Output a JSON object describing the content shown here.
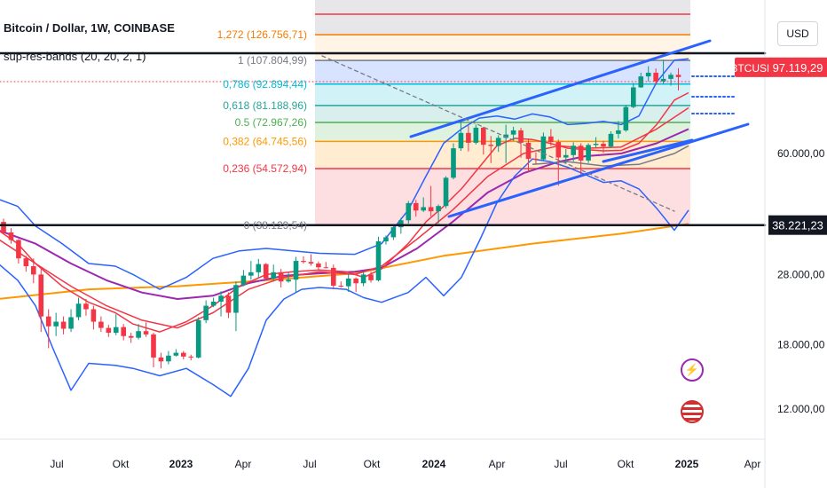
{
  "header": {
    "title": "Bitcoin / Dollar, 1W, COINBASE",
    "indicator": "sup-res-bands (20, 20, 2, 1)",
    "currency": "USD"
  },
  "chart_data": {
    "type": "candlestick",
    "symbol": "BTCUSD",
    "interval": "1W",
    "x_ticks": [
      "Jul",
      "Okt",
      "2023",
      "Apr",
      "Jul",
      "Okt",
      "2024",
      "Apr",
      "Jul",
      "Okt",
      "2025",
      "Apr"
    ],
    "y_ticks": [
      "60.000,00",
      "28.000,00",
      "18.000,00",
      "12.000,00"
    ],
    "y_scale": "log",
    "last_price_label": "BTCUSD",
    "last_price": "97.119,29",
    "support_price": "38.221,23",
    "fibonacci": [
      {
        "level": "1,272",
        "price": "126.756,71",
        "color": "#f57c00"
      },
      {
        "level": "1",
        "price": "107.804,99",
        "color": "#787b86"
      },
      {
        "level": "0,786",
        "price": "92.894,44",
        "color": "#00bcd4"
      },
      {
        "level": "0,618",
        "price": "81.188,96",
        "color": "#26a69a"
      },
      {
        "level": "0.5",
        "price": "72.967,26",
        "color": "#4caf50"
      },
      {
        "level": "0,382",
        "price": "64.745,56",
        "color": "#ff9800"
      },
      {
        "level": "0,236",
        "price": "54.572,94",
        "color": "#f23645"
      },
      {
        "level": "0",
        "price": "38.129,54",
        "color": "#787b86"
      }
    ],
    "candles_ohlc": [
      [
        39000,
        39800,
        36000,
        36500
      ],
      [
        36500,
        37500,
        34000,
        34800
      ],
      [
        34800,
        35000,
        30000,
        31000
      ],
      [
        31000,
        31500,
        28500,
        29500
      ],
      [
        29500,
        31000,
        26500,
        28000
      ],
      [
        28000,
        29000,
        19500,
        21500
      ],
      [
        21500,
        22500,
        17600,
        20200
      ],
      [
        20200,
        22000,
        19000,
        20800
      ],
      [
        20800,
        21500,
        19200,
        19900
      ],
      [
        19900,
        22500,
        19500,
        21400
      ],
      [
        21400,
        24200,
        21000,
        23300
      ],
      [
        23300,
        24000,
        21600,
        22500
      ],
      [
        22500,
        23000,
        19800,
        20800
      ],
      [
        20800,
        21500,
        19500,
        20000
      ],
      [
        20000,
        20400,
        18900,
        19400
      ],
      [
        19400,
        21800,
        19100,
        20100
      ],
      [
        20100,
        20500,
        18500,
        19000
      ],
      [
        19000,
        19400,
        18200,
        18800
      ],
      [
        18800,
        20500,
        18600,
        19600
      ],
      [
        19600,
        20700,
        18900,
        19200
      ],
      [
        19200,
        19400,
        15600,
        16600
      ],
      [
        16600,
        17100,
        15500,
        16200
      ],
      [
        16200,
        17300,
        15900,
        16800
      ],
      [
        16800,
        17500,
        16700,
        17100
      ],
      [
        17100,
        17300,
        16400,
        16700
      ],
      [
        16700,
        16900,
        16300,
        16600
      ],
      [
        16600,
        21400,
        16500,
        21000
      ],
      [
        21000,
        23800,
        20600,
        23000
      ],
      [
        23000,
        24200,
        22800,
        23600
      ],
      [
        23600,
        25200,
        21500,
        24500
      ],
      [
        24500,
        25000,
        21300,
        22000
      ],
      [
        22000,
        26800,
        19600,
        26200
      ],
      [
        26200,
        28800,
        26000,
        27800
      ],
      [
        27800,
        30500,
        27100,
        28400
      ],
      [
        28400,
        30900,
        27400,
        29900
      ],
      [
        29900,
        30100,
        27000,
        27300
      ],
      [
        27300,
        29800,
        26800,
        28400
      ],
      [
        28400,
        29000,
        25800,
        26800
      ],
      [
        26800,
        28300,
        26600,
        27100
      ],
      [
        27100,
        31300,
        25000,
        30500
      ],
      [
        30500,
        31400,
        30000,
        30300
      ],
      [
        30300,
        31800,
        29600,
        30000
      ],
      [
        30000,
        30400,
        28800,
        29300
      ],
      [
        29300,
        30300,
        29100,
        29200
      ],
      [
        29200,
        29800,
        25500,
        26100
      ],
      [
        26100,
        26800,
        25800,
        26000
      ],
      [
        26000,
        28100,
        25100,
        27300
      ],
      [
        27300,
        27500,
        25100,
        26500
      ],
      [
        26500,
        28500,
        26000,
        28000
      ],
      [
        28000,
        28500,
        26600,
        27000
      ],
      [
        27000,
        35500,
        26800,
        34500
      ],
      [
        34500,
        35800,
        33800,
        35400
      ],
      [
        35400,
        38200,
        34800,
        37700
      ],
      [
        37700,
        40000,
        36200,
        39400
      ],
      [
        39400,
        44500,
        38600,
        43900
      ],
      [
        43900,
        44800,
        40300,
        41900
      ],
      [
        41900,
        45500,
        41500,
        42800
      ],
      [
        42800,
        48900,
        40400,
        41700
      ],
      [
        41700,
        43500,
        38600,
        43100
      ],
      [
        43100,
        52000,
        42500,
        51500
      ],
      [
        51500,
        64000,
        51000,
        62000
      ],
      [
        62000,
        73700,
        61000,
        68300
      ],
      [
        68300,
        71500,
        60800,
        64200
      ],
      [
        64200,
        72000,
        63500,
        70600
      ],
      [
        70600,
        71000,
        59600,
        63400
      ],
      [
        63400,
        67000,
        56500,
        62900
      ],
      [
        62900,
        67300,
        60600,
        66200
      ],
      [
        66200,
        71900,
        56500,
        67600
      ],
      [
        67600,
        71000,
        65000,
        69400
      ],
      [
        69400,
        70500,
        58400,
        64200
      ],
      [
        64200,
        66000,
        53400,
        58000
      ],
      [
        58000,
        60500,
        56000,
        57800
      ],
      [
        57800,
        68500,
        57500,
        66800
      ],
      [
        66800,
        70000,
        63000,
        64500
      ],
      [
        64500,
        65500,
        49000,
        58500
      ],
      [
        58500,
        61700,
        56200,
        59400
      ],
      [
        59400,
        64400,
        57100,
        63000
      ],
      [
        63000,
        64000,
        52500,
        57400
      ],
      [
        57400,
        64000,
        56500,
        63300
      ],
      [
        63300,
        66500,
        62100,
        63800
      ],
      [
        63800,
        65000,
        60200,
        62700
      ],
      [
        62700,
        69000,
        62200,
        67900
      ],
      [
        67900,
        73600,
        66000,
        69400
      ],
      [
        69400,
        81500,
        68800,
        80400
      ],
      [
        80400,
        93500,
        79800,
        91000
      ],
      [
        91000,
        99800,
        90700,
        97500
      ],
      [
        97500,
        104000,
        94500,
        99800
      ],
      [
        99800,
        102500,
        92400,
        94500
      ],
      [
        94500,
        108300,
        93100,
        96000
      ],
      [
        96000,
        99900,
        92000,
        98500
      ],
      [
        98500,
        102700,
        89300,
        97100
      ]
    ],
    "bollinger_upper": [
      [
        -2,
        45000
      ],
      [
        20,
        43000
      ],
      [
        40,
        38000
      ],
      [
        70,
        34000
      ],
      [
        100,
        30000
      ],
      [
        130,
        29500
      ],
      [
        150,
        28000
      ],
      [
        180,
        25500
      ],
      [
        210,
        27500
      ],
      [
        240,
        31000
      ],
      [
        270,
        32500
      ],
      [
        300,
        33000
      ],
      [
        330,
        32500
      ],
      [
        360,
        32000
      ],
      [
        400,
        31800
      ],
      [
        430,
        34000
      ],
      [
        460,
        42000
      ],
      [
        480,
        52000
      ],
      [
        500,
        64000
      ],
      [
        520,
        70000
      ],
      [
        540,
        75000
      ],
      [
        560,
        76000
      ],
      [
        580,
        74500
      ],
      [
        600,
        77000
      ],
      [
        620,
        75500
      ],
      [
        640,
        72000
      ],
      [
        660,
        72500
      ],
      [
        680,
        73500
      ],
      [
        700,
        72000
      ],
      [
        720,
        76000
      ],
      [
        740,
        94000
      ],
      [
        760,
        108000
      ],
      [
        776,
        109000
      ]
    ],
    "bollinger_mid": [
      [
        -2,
        37000
      ],
      [
        20,
        34000
      ],
      [
        40,
        30000
      ],
      [
        70,
        26000
      ],
      [
        100,
        23500
      ],
      [
        130,
        22000
      ],
      [
        150,
        20500
      ],
      [
        180,
        19500
      ],
      [
        210,
        20800
      ],
      [
        240,
        23000
      ],
      [
        270,
        26000
      ],
      [
        300,
        28000
      ],
      [
        330,
        28500
      ],
      [
        360,
        28800
      ],
      [
        390,
        28500
      ],
      [
        410,
        27500
      ],
      [
        430,
        29000
      ],
      [
        460,
        34000
      ],
      [
        480,
        39000
      ],
      [
        500,
        43000
      ],
      [
        520,
        48000
      ],
      [
        540,
        55000
      ],
      [
        560,
        63000
      ],
      [
        580,
        66000
      ],
      [
        600,
        65500
      ],
      [
        620,
        64000
      ],
      [
        640,
        62000
      ],
      [
        660,
        61500
      ],
      [
        680,
        61000
      ],
      [
        700,
        61200
      ],
      [
        720,
        64000
      ],
      [
        740,
        72000
      ],
      [
        760,
        84000
      ],
      [
        776,
        88000
      ]
    ],
    "bollinger_lower": [
      [
        -2,
        30000
      ],
      [
        20,
        27000
      ],
      [
        40,
        23000
      ],
      [
        60,
        17500
      ],
      [
        80,
        13500
      ],
      [
        100,
        16000
      ],
      [
        130,
        15800
      ],
      [
        150,
        15500
      ],
      [
        180,
        14800
      ],
      [
        210,
        15500
      ],
      [
        240,
        14000
      ],
      [
        260,
        13000
      ],
      [
        280,
        15500
      ],
      [
        300,
        21000
      ],
      [
        320,
        24000
      ],
      [
        340,
        25500
      ],
      [
        360,
        25800
      ],
      [
        390,
        25500
      ],
      [
        410,
        24200
      ],
      [
        430,
        23500
      ],
      [
        460,
        25000
      ],
      [
        480,
        27500
      ],
      [
        500,
        24500
      ],
      [
        520,
        27500
      ],
      [
        540,
        34500
      ],
      [
        560,
        44000
      ],
      [
        580,
        52000
      ],
      [
        600,
        58000
      ],
      [
        620,
        57000
      ],
      [
        640,
        55000
      ],
      [
        660,
        52500
      ],
      [
        680,
        50000
      ],
      [
        700,
        50500
      ],
      [
        720,
        48000
      ],
      [
        740,
        42500
      ],
      [
        760,
        37000
      ],
      [
        776,
        42000
      ]
    ],
    "ma_200": [
      [
        -2,
        24000
      ],
      [
        100,
        25500
      ],
      [
        200,
        26000
      ],
      [
        300,
        27000
      ],
      [
        400,
        28200
      ],
      [
        500,
        31500
      ],
      [
        600,
        34000
      ],
      [
        700,
        36200
      ],
      [
        776,
        38500
      ]
    ],
    "ma_purple": [
      [
        -2,
        37000
      ],
      [
        40,
        34000
      ],
      [
        80,
        30000
      ],
      [
        120,
        27000
      ],
      [
        160,
        25000
      ],
      [
        200,
        24000
      ],
      [
        240,
        24500
      ],
      [
        280,
        26500
      ],
      [
        320,
        27800
      ],
      [
        360,
        28200
      ],
      [
        400,
        28500
      ],
      [
        430,
        29200
      ],
      [
        470,
        33000
      ],
      [
        510,
        39000
      ],
      [
        550,
        47000
      ],
      [
        590,
        53000
      ],
      [
        630,
        57000
      ],
      [
        660,
        59000
      ],
      [
        700,
        60000
      ],
      [
        740,
        64000
      ],
      [
        776,
        70000
      ]
    ],
    "ma_red": [
      [
        -2,
        35000
      ],
      [
        40,
        30000
      ],
      [
        80,
        26000
      ],
      [
        120,
        23000
      ],
      [
        160,
        21000
      ],
      [
        200,
        20000
      ],
      [
        240,
        22000
      ],
      [
        280,
        25500
      ],
      [
        320,
        27500
      ],
      [
        360,
        28500
      ],
      [
        400,
        28000
      ],
      [
        430,
        29500
      ],
      [
        470,
        35000
      ],
      [
        510,
        42000
      ],
      [
        550,
        52000
      ],
      [
        590,
        60000
      ],
      [
        630,
        63000
      ],
      [
        660,
        62000
      ],
      [
        700,
        62500
      ],
      [
        740,
        70000
      ],
      [
        776,
        80000
      ]
    ],
    "ma_gray": [
      [
        600,
        56000
      ],
      [
        640,
        57000
      ],
      [
        680,
        55500
      ],
      [
        720,
        56000
      ],
      [
        760,
        60000
      ],
      [
        776,
        63000
      ]
    ]
  }
}
